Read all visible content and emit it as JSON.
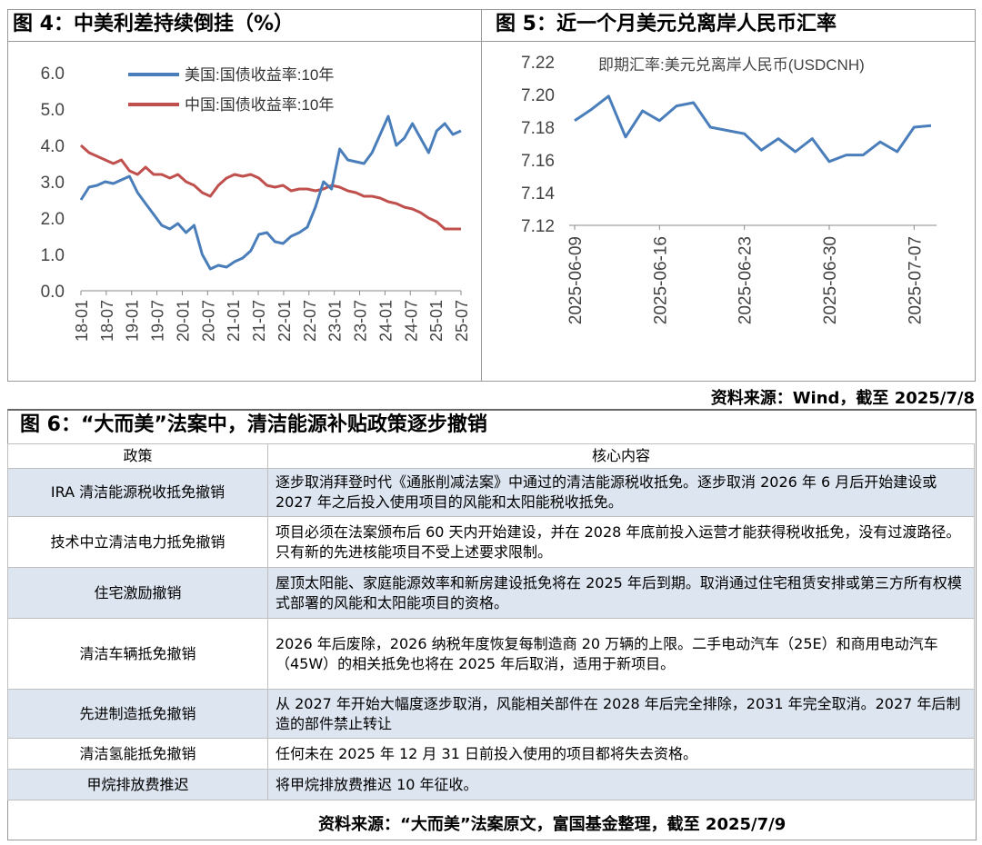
{
  "fig4": {
    "title": "图 4：中美利差持续倒挂（%）",
    "legend": [
      "美国:国债收益率:10年",
      "中国:国债收益率:10年"
    ],
    "colors": {
      "us": "#4a7ebb",
      "cn": "#c0504d"
    },
    "yticks": [
      "6.0",
      "5.0",
      "4.0",
      "3.0",
      "2.0",
      "1.0",
      "0.0"
    ],
    "xticks": [
      "18-01",
      "18-07",
      "19-01",
      "19-07",
      "20-01",
      "20-07",
      "21-01",
      "21-07",
      "22-01",
      "22-07",
      "23-01",
      "23-07",
      "24-01",
      "24-07",
      "25-01",
      "25-07"
    ]
  },
  "fig5": {
    "title": "图 5：近一个月美元兑离岸人民币汇率",
    "legend": "即期汇率:美元兑离岸人民币(USDCNH)",
    "color": "#4a7ebb",
    "yticks": [
      "7.22",
      "7.20",
      "7.18",
      "7.16",
      "7.14",
      "7.12"
    ],
    "xticks": [
      "2025-06-09",
      "2025-06-16",
      "2025-06-23",
      "2025-06-30",
      "2025-07-07"
    ]
  },
  "chart_data": [
    {
      "type": "line",
      "title": "中美利差持续倒挂（%）",
      "x": [
        "18-01",
        "18-07",
        "19-01",
        "19-07",
        "20-01",
        "20-07",
        "21-01",
        "21-07",
        "22-01",
        "22-07",
        "23-01",
        "23-07",
        "24-01",
        "24-07",
        "25-01",
        "25-07"
      ],
      "ylim": [
        0,
        6
      ],
      "series": [
        {
          "name": "美国:国债收益率:10年",
          "values": [
            [
              0,
              2.5
            ],
            [
              1,
              2.85
            ],
            [
              2,
              2.9
            ],
            [
              3,
              3.0
            ],
            [
              4,
              2.95
            ],
            [
              5,
              3.05
            ],
            [
              6,
              3.15
            ],
            [
              7,
              2.7
            ],
            [
              8,
              2.4
            ],
            [
              9,
              2.1
            ],
            [
              10,
              1.8
            ],
            [
              11,
              1.7
            ],
            [
              12,
              1.85
            ],
            [
              13,
              1.6
            ],
            [
              14,
              1.8
            ],
            [
              15,
              1.0
            ],
            [
              16,
              0.6
            ],
            [
              17,
              0.7
            ],
            [
              18,
              0.65
            ],
            [
              19,
              0.8
            ],
            [
              20,
              0.9
            ],
            [
              21,
              1.1
            ],
            [
              22,
              1.55
            ],
            [
              23,
              1.6
            ],
            [
              24,
              1.35
            ],
            [
              25,
              1.3
            ],
            [
              26,
              1.5
            ],
            [
              27,
              1.6
            ],
            [
              28,
              1.75
            ],
            [
              29,
              2.3
            ],
            [
              30,
              3.0
            ],
            [
              31,
              2.8
            ],
            [
              32,
              3.9
            ],
            [
              33,
              3.6
            ],
            [
              34,
              3.55
            ],
            [
              35,
              3.5
            ],
            [
              36,
              3.8
            ],
            [
              37,
              4.3
            ],
            [
              38,
              4.8
            ],
            [
              39,
              4.0
            ],
            [
              40,
              4.2
            ],
            [
              41,
              4.6
            ],
            [
              42,
              4.2
            ],
            [
              43,
              3.8
            ],
            [
              44,
              4.4
            ],
            [
              45,
              4.6
            ],
            [
              46,
              4.3
            ],
            [
              47,
              4.4
            ]
          ]
        },
        {
          "name": "中国:国债收益率:10年",
          "values": [
            [
              0,
              4.0
            ],
            [
              1,
              3.8
            ],
            [
              2,
              3.7
            ],
            [
              3,
              3.6
            ],
            [
              4,
              3.5
            ],
            [
              5,
              3.6
            ],
            [
              6,
              3.3
            ],
            [
              7,
              3.2
            ],
            [
              8,
              3.4
            ],
            [
              9,
              3.2
            ],
            [
              10,
              3.2
            ],
            [
              11,
              3.1
            ],
            [
              12,
              3.2
            ],
            [
              13,
              3.0
            ],
            [
              14,
              2.9
            ],
            [
              15,
              2.7
            ],
            [
              16,
              2.6
            ],
            [
              17,
              2.9
            ],
            [
              18,
              3.1
            ],
            [
              19,
              3.2
            ],
            [
              20,
              3.15
            ],
            [
              21,
              3.2
            ],
            [
              22,
              3.1
            ],
            [
              23,
              2.9
            ],
            [
              24,
              2.85
            ],
            [
              25,
              2.9
            ],
            [
              26,
              2.75
            ],
            [
              27,
              2.8
            ],
            [
              28,
              2.8
            ],
            [
              29,
              2.75
            ],
            [
              30,
              2.8
            ],
            [
              31,
              2.9
            ],
            [
              32,
              2.85
            ],
            [
              33,
              2.75
            ],
            [
              34,
              2.7
            ],
            [
              35,
              2.6
            ],
            [
              36,
              2.6
            ],
            [
              37,
              2.55
            ],
            [
              38,
              2.45
            ],
            [
              39,
              2.4
            ],
            [
              40,
              2.3
            ],
            [
              41,
              2.25
            ],
            [
              42,
              2.15
            ],
            [
              43,
              2.0
            ],
            [
              44,
              1.9
            ],
            [
              45,
              1.7
            ],
            [
              46,
              1.7
            ],
            [
              47,
              1.7
            ]
          ]
        }
      ]
    },
    {
      "type": "line",
      "title": "近一个月美元兑离岸人民币汇率",
      "x": [
        "2025-06-09",
        "2025-06-10",
        "2025-06-11",
        "2025-06-12",
        "2025-06-13",
        "2025-06-16",
        "2025-06-17",
        "2025-06-18",
        "2025-06-19",
        "2025-06-20",
        "2025-06-23",
        "2025-06-24",
        "2025-06-25",
        "2025-06-26",
        "2025-06-27",
        "2025-06-30",
        "2025-07-01",
        "2025-07-02",
        "2025-07-03",
        "2025-07-04",
        "2025-07-07",
        "2025-07-08"
      ],
      "ylim": [
        7.12,
        7.22
      ],
      "series": [
        {
          "name": "即期汇率:美元兑离岸人民币(USDCNH)",
          "values": [
            7.184,
            7.191,
            7.199,
            7.174,
            7.19,
            7.184,
            7.193,
            7.195,
            7.18,
            7.178,
            7.176,
            7.166,
            7.173,
            7.165,
            7.173,
            7.159,
            7.163,
            7.163,
            7.171,
            7.165,
            7.18,
            7.181
          ]
        }
      ]
    }
  ],
  "source1": "资料来源：Wind，截至 2025/7/8",
  "fig6": {
    "title": "图 6：“大而美”法案中，清洁能源补贴政策逐步撤销",
    "headers": [
      "政策",
      "核心内容"
    ],
    "rows": [
      {
        "policy": "IRA 清洁能源税收抵免撤销",
        "content": "逐步取消拜登时代《通胀削减法案》中通过的清洁能源税收抵免。逐步取消 2026 年 6 月后开始建设或 2027 年之后投入使用项目的风能和太阳能税收抵免。"
      },
      {
        "policy": "技术中立清洁电力抵免撤销",
        "content": "项目必须在法案颁布后 60 天内开始建设，并在 2028 年底前投入运营才能获得税收抵免，没有过渡路径。只有新的先进核能项目不受上述要求限制。"
      },
      {
        "policy": "住宅激励撤销",
        "content": "屋顶太阳能、家庭能源效率和新房建设抵免将在 2025 年后到期。取消通过住宅租赁安排或第三方所有权模式部署的风能和太阳能项目的资格。"
      },
      {
        "policy": "清洁车辆抵免撤销",
        "content": "2026 年后废除，2026 纳税年度恢复每制造商 20 万辆的上限。二手电动汽车（25E）和商用电动汽车（45W）的相关抵免也将在 2025 年后取消，适用于新项目。"
      },
      {
        "policy": "先进制造抵免撤销",
        "content": "从 2027 年开始大幅度逐步取消，风能相关部件在 2028 年后完全排除，2031 年完全取消。2027 年后制造的部件禁止转让"
      },
      {
        "policy": "清洁氢能抵免撤销",
        "content": "任何未在 2025 年 12 月 31 日前投入使用的项目都将失去资格。"
      },
      {
        "policy": "甲烷排放费推迟",
        "content": "将甲烷排放费推迟 10 年征收。"
      }
    ]
  },
  "source2": "资料来源：“大而美”法案原文，富国基金整理，截至 2025/7/9"
}
